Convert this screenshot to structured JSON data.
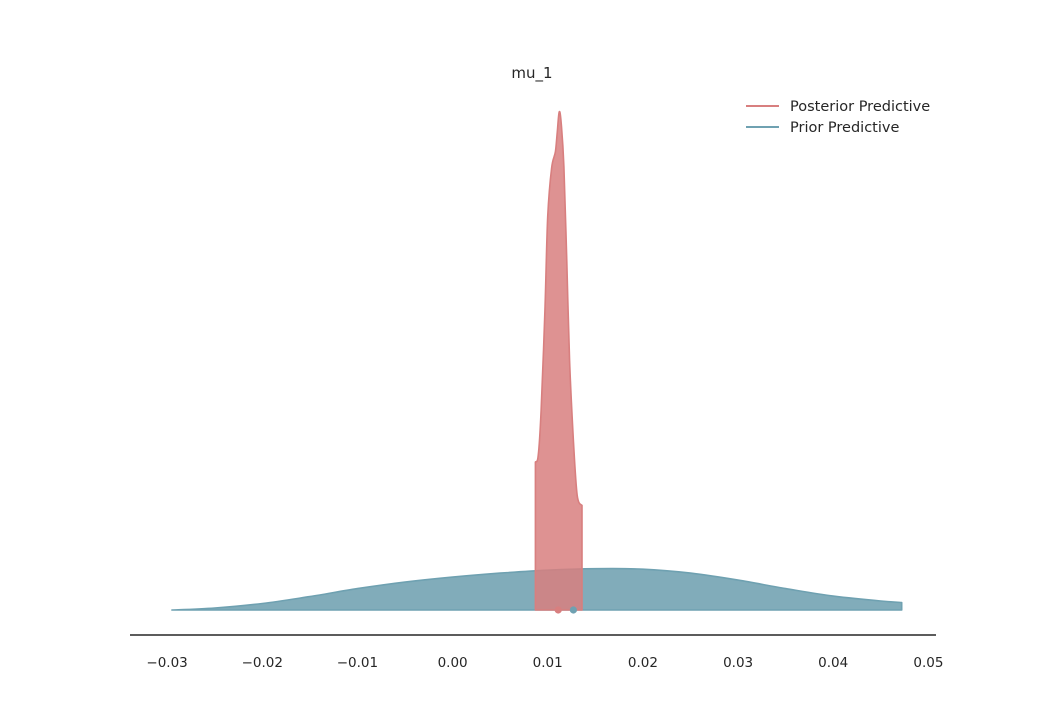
{
  "chart_data": {
    "type": "area",
    "title": "mu_1",
    "xlabel": "",
    "ylabel": "",
    "xlim": [
      -0.0339,
      0.0508
    ],
    "xticks": [
      -0.03,
      -0.02,
      -0.01,
      0.0,
      0.01,
      0.02,
      0.03,
      0.04,
      0.05
    ],
    "xtick_labels": [
      "−0.03",
      "−0.02",
      "−0.01",
      "0.00",
      "0.01",
      "0.02",
      "0.03",
      "0.04",
      "0.05"
    ],
    "grid": false,
    "y_axis_visible": false,
    "legend_position": "top-right",
    "series": [
      {
        "name": "Posterior Predictive",
        "color": "#d87f7f",
        "density": [
          [
            0.0087,
            0.297
          ],
          [
            0.009,
            0.31
          ],
          [
            0.0093,
            0.4
          ],
          [
            0.0097,
            0.6
          ],
          [
            0.01,
            0.79
          ],
          [
            0.0104,
            0.887
          ],
          [
            0.0108,
            0.92
          ],
          [
            0.011,
            0.96
          ],
          [
            0.0112,
            1.0
          ],
          [
            0.0114,
            0.98
          ],
          [
            0.0117,
            0.89
          ],
          [
            0.012,
            0.7
          ],
          [
            0.0123,
            0.5
          ],
          [
            0.0127,
            0.34
          ],
          [
            0.0131,
            0.23
          ],
          [
            0.0136,
            0.21
          ]
        ],
        "marker": 0.0111
      },
      {
        "name": "Prior Predictive",
        "color": "#6fa1b1",
        "density": [
          [
            -0.0295,
            0.0
          ],
          [
            -0.025,
            0.004
          ],
          [
            -0.02,
            0.013
          ],
          [
            -0.015,
            0.027
          ],
          [
            -0.01,
            0.043
          ],
          [
            -0.005,
            0.056
          ],
          [
            0.0,
            0.066
          ],
          [
            0.005,
            0.074
          ],
          [
            0.01,
            0.08
          ],
          [
            0.015,
            0.083
          ],
          [
            0.02,
            0.082
          ],
          [
            0.025,
            0.074
          ],
          [
            0.03,
            0.06
          ],
          [
            0.035,
            0.043
          ],
          [
            0.04,
            0.028
          ],
          [
            0.045,
            0.018
          ],
          [
            0.0472,
            0.015
          ]
        ],
        "marker": 0.0127
      }
    ]
  }
}
